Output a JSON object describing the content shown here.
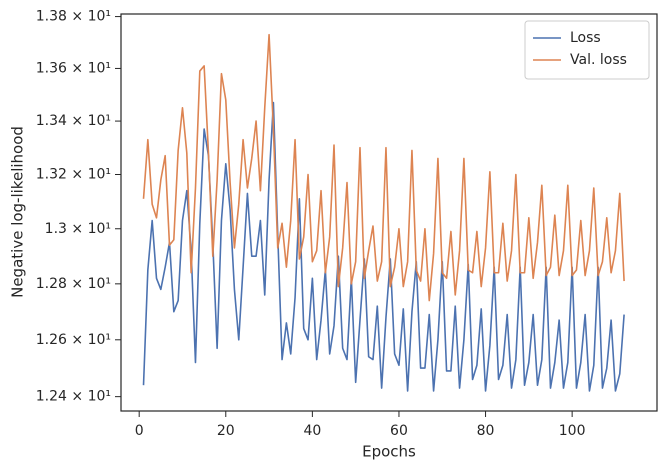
{
  "chart_data": {
    "type": "line",
    "xlabel": "Epochs",
    "ylabel": "Negative log-likelihood",
    "yscale": "log",
    "legend": "upper right",
    "x": [
      1,
      2,
      3,
      4,
      5,
      6,
      7,
      8,
      9,
      10,
      11,
      12,
      13,
      14,
      15,
      16,
      17,
      18,
      19,
      20,
      21,
      22,
      23,
      24,
      25,
      26,
      27,
      28,
      29,
      30,
      31,
      32,
      33,
      34,
      35,
      36,
      37,
      38,
      39,
      40,
      41,
      42,
      43,
      44,
      45,
      46,
      47,
      48,
      49,
      50,
      51,
      52,
      53,
      54,
      55,
      56,
      57,
      58,
      59,
      60,
      61,
      62,
      63,
      64,
      65,
      66,
      67,
      68,
      69,
      70,
      71,
      72,
      73,
      74,
      75,
      76,
      77,
      78,
      79,
      80,
      81,
      82,
      83,
      84,
      85,
      86,
      87,
      88,
      89,
      90,
      91,
      92,
      93,
      94,
      95,
      96,
      97,
      98,
      99,
      100,
      101,
      102,
      103,
      104,
      105,
      106,
      107,
      108,
      109,
      110,
      111,
      112
    ],
    "series": [
      {
        "name": "Loss",
        "color": "#4c72b0",
        "values": [
          12.44,
          12.85,
          13.03,
          12.82,
          12.78,
          12.86,
          12.95,
          12.7,
          12.74,
          13.03,
          13.14,
          12.92,
          12.52,
          13.02,
          13.37,
          13.27,
          12.95,
          12.57,
          13.03,
          13.24,
          13.07,
          12.78,
          12.6,
          12.86,
          13.13,
          12.9,
          12.9,
          13.03,
          12.76,
          13.18,
          13.47,
          12.98,
          12.53,
          12.66,
          12.55,
          12.75,
          13.11,
          12.64,
          12.6,
          12.82,
          12.53,
          12.67,
          12.85,
          12.55,
          12.65,
          12.9,
          12.57,
          12.53,
          12.82,
          12.45,
          12.67,
          12.89,
          12.54,
          12.53,
          12.72,
          12.43,
          12.68,
          12.89,
          12.55,
          12.51,
          12.71,
          12.42,
          12.7,
          12.88,
          12.5,
          12.5,
          12.69,
          12.42,
          12.6,
          12.88,
          12.49,
          12.49,
          12.72,
          12.43,
          12.6,
          12.87,
          12.46,
          12.51,
          12.71,
          12.42,
          12.58,
          12.86,
          12.46,
          12.51,
          12.69,
          12.43,
          12.53,
          12.86,
          12.44,
          12.52,
          12.69,
          12.44,
          12.53,
          12.86,
          12.43,
          12.52,
          12.67,
          12.43,
          12.52,
          12.86,
          12.43,
          12.52,
          12.69,
          12.42,
          12.51,
          12.86,
          12.43,
          12.5,
          12.67,
          12.42,
          12.48,
          12.69
        ]
      },
      {
        "name": "Val. loss",
        "color": "#dd8452",
        "values": [
          13.11,
          13.33,
          13.09,
          13.04,
          13.18,
          13.27,
          12.94,
          12.96,
          13.29,
          13.45,
          13.28,
          12.84,
          13.15,
          13.59,
          13.61,
          13.28,
          12.9,
          13.18,
          13.58,
          13.48,
          13.17,
          12.93,
          13.09,
          13.33,
          13.15,
          13.26,
          13.4,
          13.14,
          13.45,
          13.73,
          13.37,
          12.93,
          13.02,
          12.86,
          13.03,
          13.33,
          12.89,
          12.97,
          13.2,
          12.88,
          12.92,
          13.14,
          12.84,
          12.97,
          13.31,
          12.79,
          12.93,
          13.17,
          12.8,
          12.88,
          13.3,
          12.82,
          12.92,
          13.01,
          12.81,
          12.88,
          13.3,
          12.79,
          12.86,
          13.0,
          12.79,
          12.88,
          13.29,
          12.85,
          12.81,
          13.0,
          12.74,
          12.91,
          13.26,
          12.84,
          12.82,
          12.99,
          12.76,
          12.92,
          13.26,
          12.85,
          12.84,
          12.99,
          12.79,
          12.93,
          13.21,
          12.84,
          12.84,
          13.02,
          12.81,
          12.92,
          13.2,
          12.84,
          12.84,
          13.04,
          12.82,
          12.95,
          13.16,
          12.83,
          12.86,
          13.05,
          12.83,
          12.92,
          13.16,
          12.83,
          12.85,
          13.03,
          12.83,
          12.92,
          13.15,
          12.83,
          12.88,
          13.04,
          12.84,
          12.92,
          13.13,
          12.81
        ]
      }
    ],
    "xlim": [
      -4.2,
      119.6
    ],
    "xticks": [
      0,
      20,
      40,
      60,
      80,
      100
    ],
    "ylim": [
      12.35,
      13.81
    ],
    "yticks": [
      {
        "value": 12.4,
        "label": "1.24 × 10¹"
      },
      {
        "value": 12.6,
        "label": "1.26 × 10¹"
      },
      {
        "value": 12.8,
        "label": "1.28 × 10¹"
      },
      {
        "value": 13.0,
        "label": "1.3 × 10¹"
      },
      {
        "value": 13.2,
        "label": "1.32 × 10¹"
      },
      {
        "value": 13.4,
        "label": "1.34 × 10¹"
      },
      {
        "value": 13.6,
        "label": "1.36 × 10¹"
      },
      {
        "value": 13.8,
        "label": "1.38 × 10¹"
      }
    ]
  }
}
